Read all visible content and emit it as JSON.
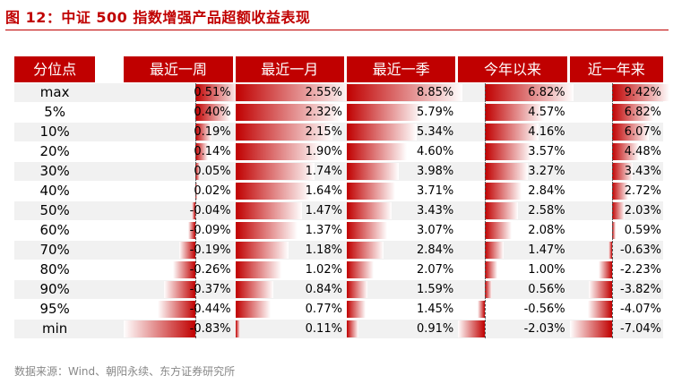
{
  "title": "图 12：中证 500 指数增强产品超额收益表现",
  "source": "数据来源：Wind、朝阳永续、东方证券研究所",
  "colors": {
    "accent": "#c00000",
    "row_alt": "#f1f1f1"
  },
  "chart_data": {
    "type": "table",
    "row_header": "分位点",
    "columns": [
      "最近一周",
      "最近一月",
      "最近一季",
      "今年以来",
      "近一年来"
    ],
    "rows": [
      "max",
      "5%",
      "10%",
      "20%",
      "30%",
      "40%",
      "50%",
      "60%",
      "70%",
      "80%",
      "90%",
      "95%",
      "min"
    ],
    "labels": [
      [
        "0.51%",
        "2.55%",
        "8.85%",
        "6.82%",
        "9.42%"
      ],
      [
        "0.40%",
        "2.32%",
        "5.79%",
        "4.57%",
        "6.82%"
      ],
      [
        "0.19%",
        "2.15%",
        "5.34%",
        "4.16%",
        "6.07%"
      ],
      [
        "0.14%",
        "1.90%",
        "4.60%",
        "3.57%",
        "4.48%"
      ],
      [
        "0.05%",
        "1.74%",
        "3.98%",
        "3.27%",
        "3.43%"
      ],
      [
        "0.02%",
        "1.64%",
        "3.71%",
        "2.84%",
        "2.72%"
      ],
      [
        "-0.04%",
        "1.47%",
        "3.43%",
        "2.58%",
        "2.03%"
      ],
      [
        "-0.09%",
        "1.37%",
        "3.07%",
        "2.08%",
        "0.59%"
      ],
      [
        "-0.19%",
        "1.18%",
        "2.84%",
        "1.47%",
        "-0.63%"
      ],
      [
        "-0.26%",
        "1.02%",
        "2.07%",
        "1.00%",
        "-2.23%"
      ],
      [
        "-0.37%",
        "0.84%",
        "1.59%",
        "0.56%",
        "-3.82%"
      ],
      [
        "-0.44%",
        "0.77%",
        "1.45%",
        "-0.56%",
        "-4.07%"
      ],
      [
        "-0.83%",
        "0.11%",
        "0.91%",
        "-2.03%",
        "-7.04%"
      ]
    ],
    "values": [
      [
        0.51,
        2.55,
        8.85,
        6.82,
        9.42
      ],
      [
        0.4,
        2.32,
        5.79,
        4.57,
        6.82
      ],
      [
        0.19,
        2.15,
        5.34,
        4.16,
        6.07
      ],
      [
        0.14,
        1.9,
        4.6,
        3.57,
        4.48
      ],
      [
        0.05,
        1.74,
        3.98,
        3.27,
        3.43
      ],
      [
        0.02,
        1.64,
        3.71,
        2.84,
        2.72
      ],
      [
        -0.04,
        1.47,
        3.43,
        2.58,
        2.03
      ],
      [
        -0.09,
        1.37,
        3.07,
        2.08,
        0.59
      ],
      [
        -0.19,
        1.18,
        2.84,
        1.47,
        -0.63
      ],
      [
        -0.26,
        1.02,
        2.07,
        1.0,
        -2.23
      ],
      [
        -0.37,
        0.84,
        1.59,
        0.56,
        -3.82
      ],
      [
        -0.44,
        0.77,
        1.45,
        -0.56,
        -4.07
      ],
      [
        -0.83,
        0.11,
        0.91,
        -2.03,
        -7.04
      ]
    ]
  }
}
